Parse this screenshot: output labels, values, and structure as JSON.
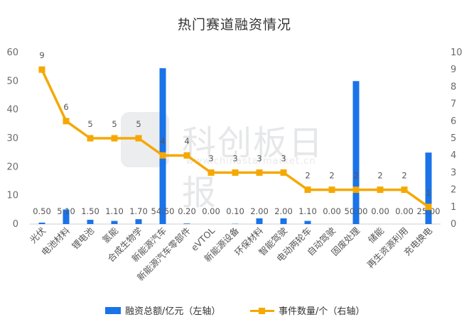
{
  "chart_data": {
    "type": "bar",
    "title": "热门赛道融资情况",
    "categories": [
      "光伏",
      "电池材料",
      "锂电池",
      "氢能",
      "合成生物学",
      "新能源汽车",
      "新能源汽车零部件",
      "eVTOL",
      "新能源设备",
      "环保材料",
      "智能驾驶",
      "电动两轮车",
      "自动驾驶",
      "固废处理",
      "储能",
      "再生资源利用",
      "充电换电"
    ],
    "bar_labels": [
      "0.50",
      "5.10",
      "1.50",
      "1.10",
      "1.70",
      "54.50",
      "0.20",
      "0.00",
      "0.10",
      "2.00",
      "2.00",
      "1.10",
      "0.00",
      "50.00",
      "0.00",
      "0.00",
      "25.00"
    ],
    "line_labels": [
      "9",
      "6",
      "5",
      "5",
      "5",
      "4",
      "4",
      "3",
      "3",
      "3",
      "3",
      "2",
      "2",
      "2",
      "2",
      "2",
      "1"
    ],
    "series": [
      {
        "name": "融资总额/亿元（左轴）",
        "type": "bar",
        "axis": "left",
        "color": "#1a73e8",
        "values": [
          0.5,
          5.1,
          1.5,
          1.1,
          1.7,
          54.5,
          0.2,
          0.0,
          0.1,
          2.0,
          2.0,
          1.1,
          0.0,
          50.0,
          0.0,
          0.0,
          25.0
        ]
      },
      {
        "name": "事件数量/个（右轴）",
        "type": "line",
        "axis": "right",
        "color": "#f5a800",
        "values": [
          9,
          6,
          5,
          5,
          5,
          4,
          4,
          3,
          3,
          3,
          3,
          2,
          2,
          2,
          2,
          2,
          1
        ]
      }
    ],
    "ylim_left": [
      0,
      60
    ],
    "yticks_left": [
      "0",
      "10",
      "20",
      "30",
      "40",
      "50",
      "60"
    ],
    "ylim_right": [
      0,
      10
    ],
    "yticks_right": [
      "0",
      "1",
      "2",
      "3",
      "4",
      "5",
      "6",
      "7",
      "8",
      "9",
      "10"
    ],
    "grid": false,
    "legend_position": "bottom"
  },
  "watermark": {
    "text": "科创板日报",
    "url": "www.chinastarmarket.cn"
  }
}
